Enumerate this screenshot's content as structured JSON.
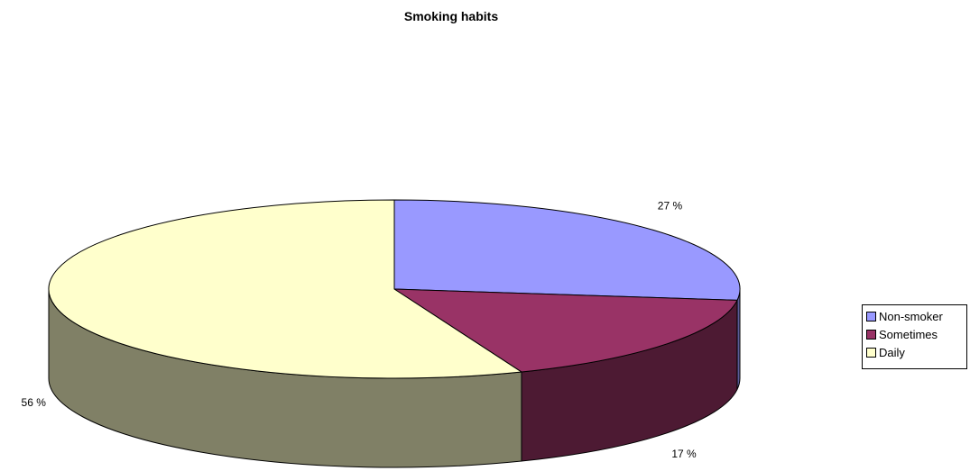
{
  "chart_data": {
    "type": "pie",
    "title": "Smoking habits",
    "three_d": true,
    "categories": [
      "Non-smoker",
      "Sometimes",
      "Daily"
    ],
    "values": [
      27,
      17,
      56
    ],
    "labels": [
      "27 %",
      "17 %",
      "56 %"
    ],
    "colors": {
      "top": [
        "#9999ff",
        "#993366",
        "#ffffcc"
      ],
      "side": [
        "#5c5c99",
        "#4d1a33",
        "#808066"
      ]
    },
    "legend_position": "right"
  }
}
